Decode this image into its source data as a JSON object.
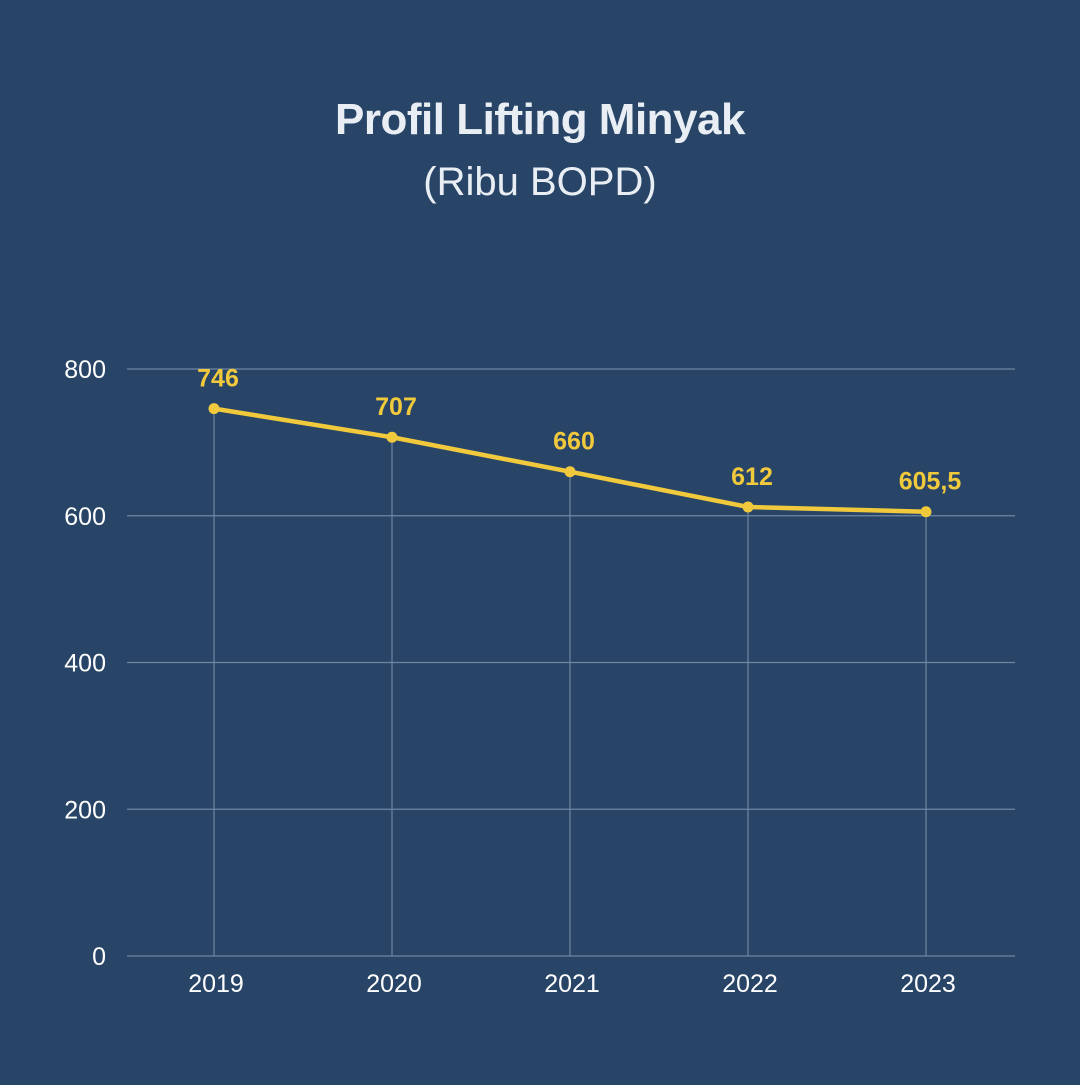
{
  "chart_data": {
    "type": "line",
    "title": "Profil Lifting Minyak",
    "subtitle": "(Ribu BOPD)",
    "categories": [
      "2019",
      "2020",
      "2021",
      "2022",
      "2023"
    ],
    "series": [
      {
        "values": [
          746,
          707,
          660,
          612,
          605.5
        ],
        "labels": [
          "746",
          "707",
          "660",
          "612",
          "605,5"
        ]
      }
    ],
    "ylim": [
      0,
      800
    ],
    "yticks": [
      0,
      200,
      400,
      600,
      800
    ],
    "grid": true,
    "legend": "none"
  },
  "colors": {
    "background": "#284567",
    "line": "#f0c93c",
    "grid": "#6d86a3",
    "text": "#ffffff"
  }
}
